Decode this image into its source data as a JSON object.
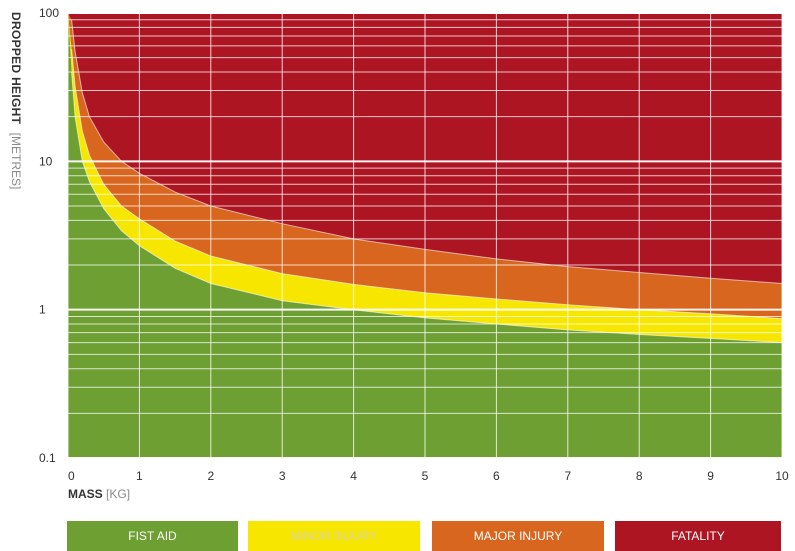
{
  "chart_data": {
    "type": "area",
    "title": "",
    "ylabel": "DROPPED HEIGHT",
    "ylabel_unit": "[METRES]",
    "xlabel": "MASS",
    "xlabel_unit": "[KG]",
    "x_scale": "linear",
    "y_scale": "log",
    "xlim": [
      0,
      10
    ],
    "ylim": [
      0.1,
      100
    ],
    "grid": true,
    "x_ticks": [
      "0",
      "1",
      "2",
      "3",
      "4",
      "5",
      "6",
      "7",
      "8",
      "9",
      "10"
    ],
    "y_ticks": [
      "0.1",
      "1",
      "10",
      "100"
    ],
    "x": [
      0.05,
      0.1,
      0.2,
      0.3,
      0.5,
      0.75,
      1,
      1.5,
      2,
      3,
      4,
      5,
      6,
      7,
      8,
      9,
      10
    ],
    "boundaries": [
      {
        "name": "FIST AID / MINOR INJURY",
        "values": [
          40,
          20,
          10,
          7.3,
          4.8,
          3.4,
          2.7,
          1.9,
          1.5,
          1.15,
          1.0,
          0.88,
          0.8,
          0.73,
          0.68,
          0.64,
          0.6
        ]
      },
      {
        "name": "MINOR INJURY / MAJOR INJURY",
        "values": [
          57,
          32,
          16,
          11,
          7.0,
          5.0,
          4.1,
          2.9,
          2.3,
          1.75,
          1.48,
          1.3,
          1.18,
          1.08,
          1.0,
          0.94,
          0.87
        ]
      },
      {
        "name": "MAJOR INJURY / FATALITY",
        "values": [
          90,
          55,
          29,
          20,
          13.5,
          10.0,
          8.3,
          6.2,
          5.0,
          3.8,
          3.0,
          2.55,
          2.2,
          1.95,
          1.78,
          1.63,
          1.5
        ]
      }
    ],
    "legend": [
      {
        "label": "FIST AID",
        "color": "#6e9f32",
        "text_color": "#ffffff"
      },
      {
        "label": "MINOR INJURY",
        "color": "#f7e600",
        "text_color": "#d9d7a8"
      },
      {
        "label": "MAJOR INJURY",
        "color": "#d9661f",
        "text_color": "#ffffff"
      },
      {
        "label": "FATALITY",
        "color": "#ad1523",
        "text_color": "#ffffff"
      }
    ],
    "legend_position": "bottom",
    "colors": {
      "fist_aid": "#6e9f32",
      "minor_injury": "#f7e600",
      "major_injury": "#d9661f",
      "fatality": "#ad1523"
    }
  }
}
